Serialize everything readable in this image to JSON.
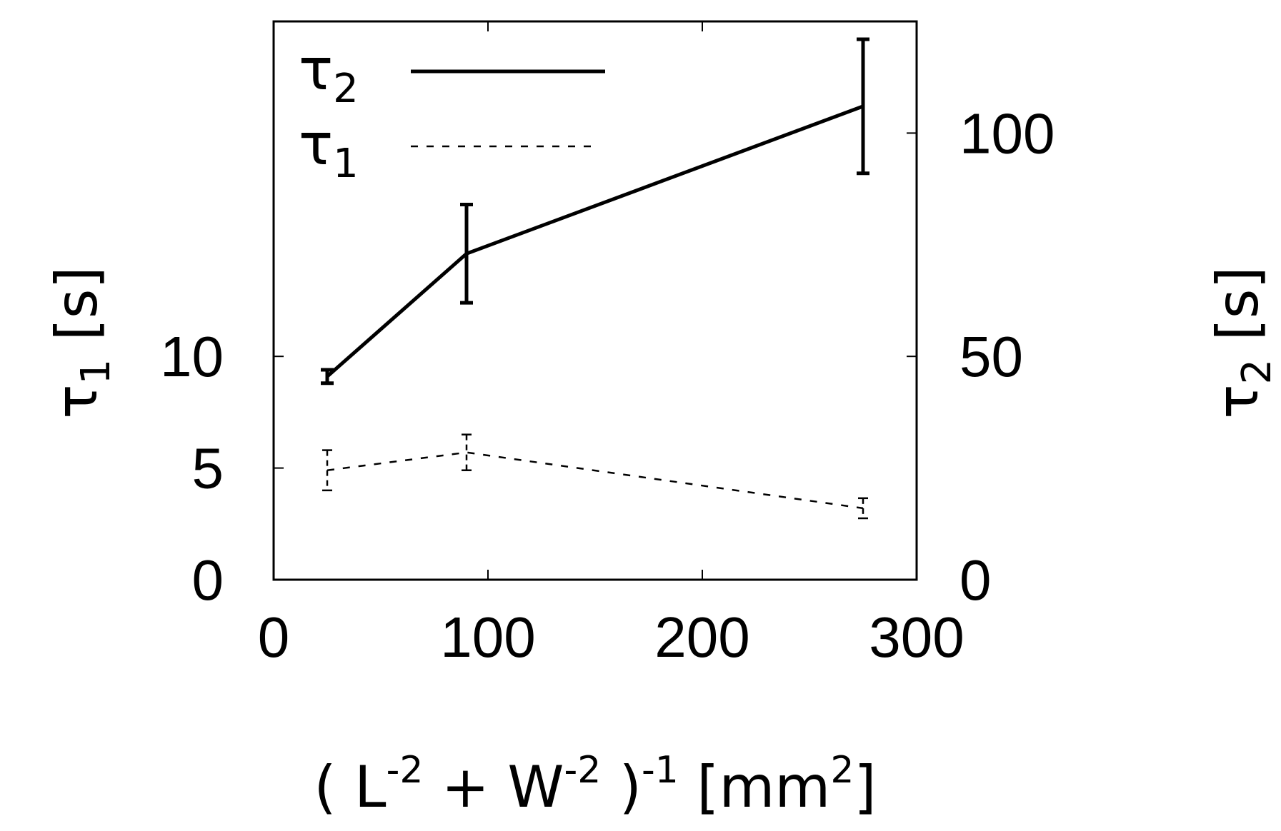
{
  "chart_data": {
    "type": "line",
    "title": "",
    "xlabel": {
      "parts": [
        {
          "t": "( L",
          "s": "normal"
        },
        {
          "t": "-2",
          "s": "sup"
        },
        {
          "t": " + W",
          "s": "normal"
        },
        {
          "t": "-2",
          "s": "sup"
        },
        {
          "t": " )",
          "s": "normal"
        },
        {
          "t": "-1",
          "s": "sup"
        },
        {
          "t": " [mm",
          "s": "normal"
        },
        {
          "t": "2",
          "s": "sup"
        },
        {
          "t": "]",
          "s": "normal"
        }
      ]
    },
    "ylabel_left": {
      "parts": [
        {
          "t": "τ",
          "s": "normal"
        },
        {
          "t": "1",
          "s": "sub"
        },
        {
          "t": " [s]",
          "s": "normal"
        }
      ]
    },
    "ylabel_right": {
      "parts": [
        {
          "t": "τ",
          "s": "normal"
        },
        {
          "t": "2",
          "s": "sub"
        },
        {
          "t": " [s]",
          "s": "normal"
        }
      ]
    },
    "xlim": [
      0,
      300
    ],
    "ylim_left": [
      0,
      25
    ],
    "ylim_right": [
      0,
      125
    ],
    "xticks": [
      0,
      100,
      200,
      300
    ],
    "yticks_left": [
      0,
      5,
      10
    ],
    "yticks_right": [
      0,
      50,
      100
    ],
    "grid": false,
    "legend_position": "top-left",
    "series": [
      {
        "name": "τ2",
        "name_parts": [
          {
            "t": "τ",
            "s": "normal"
          },
          {
            "t": "2",
            "s": "sub"
          }
        ],
        "axis": "right",
        "style": "solid",
        "x": [
          25,
          90,
          275
        ],
        "y": [
          45.5,
          73,
          106
        ],
        "err": [
          1.5,
          11,
          15
        ]
      },
      {
        "name": "τ1",
        "name_parts": [
          {
            "t": "τ",
            "s": "normal"
          },
          {
            "t": "1",
            "s": "sub"
          }
        ],
        "axis": "left",
        "style": "dashed",
        "x": [
          25,
          90,
          275
        ],
        "y": [
          4.9,
          5.7,
          3.2
        ],
        "err": [
          0.9,
          0.8,
          0.45
        ]
      }
    ]
  }
}
